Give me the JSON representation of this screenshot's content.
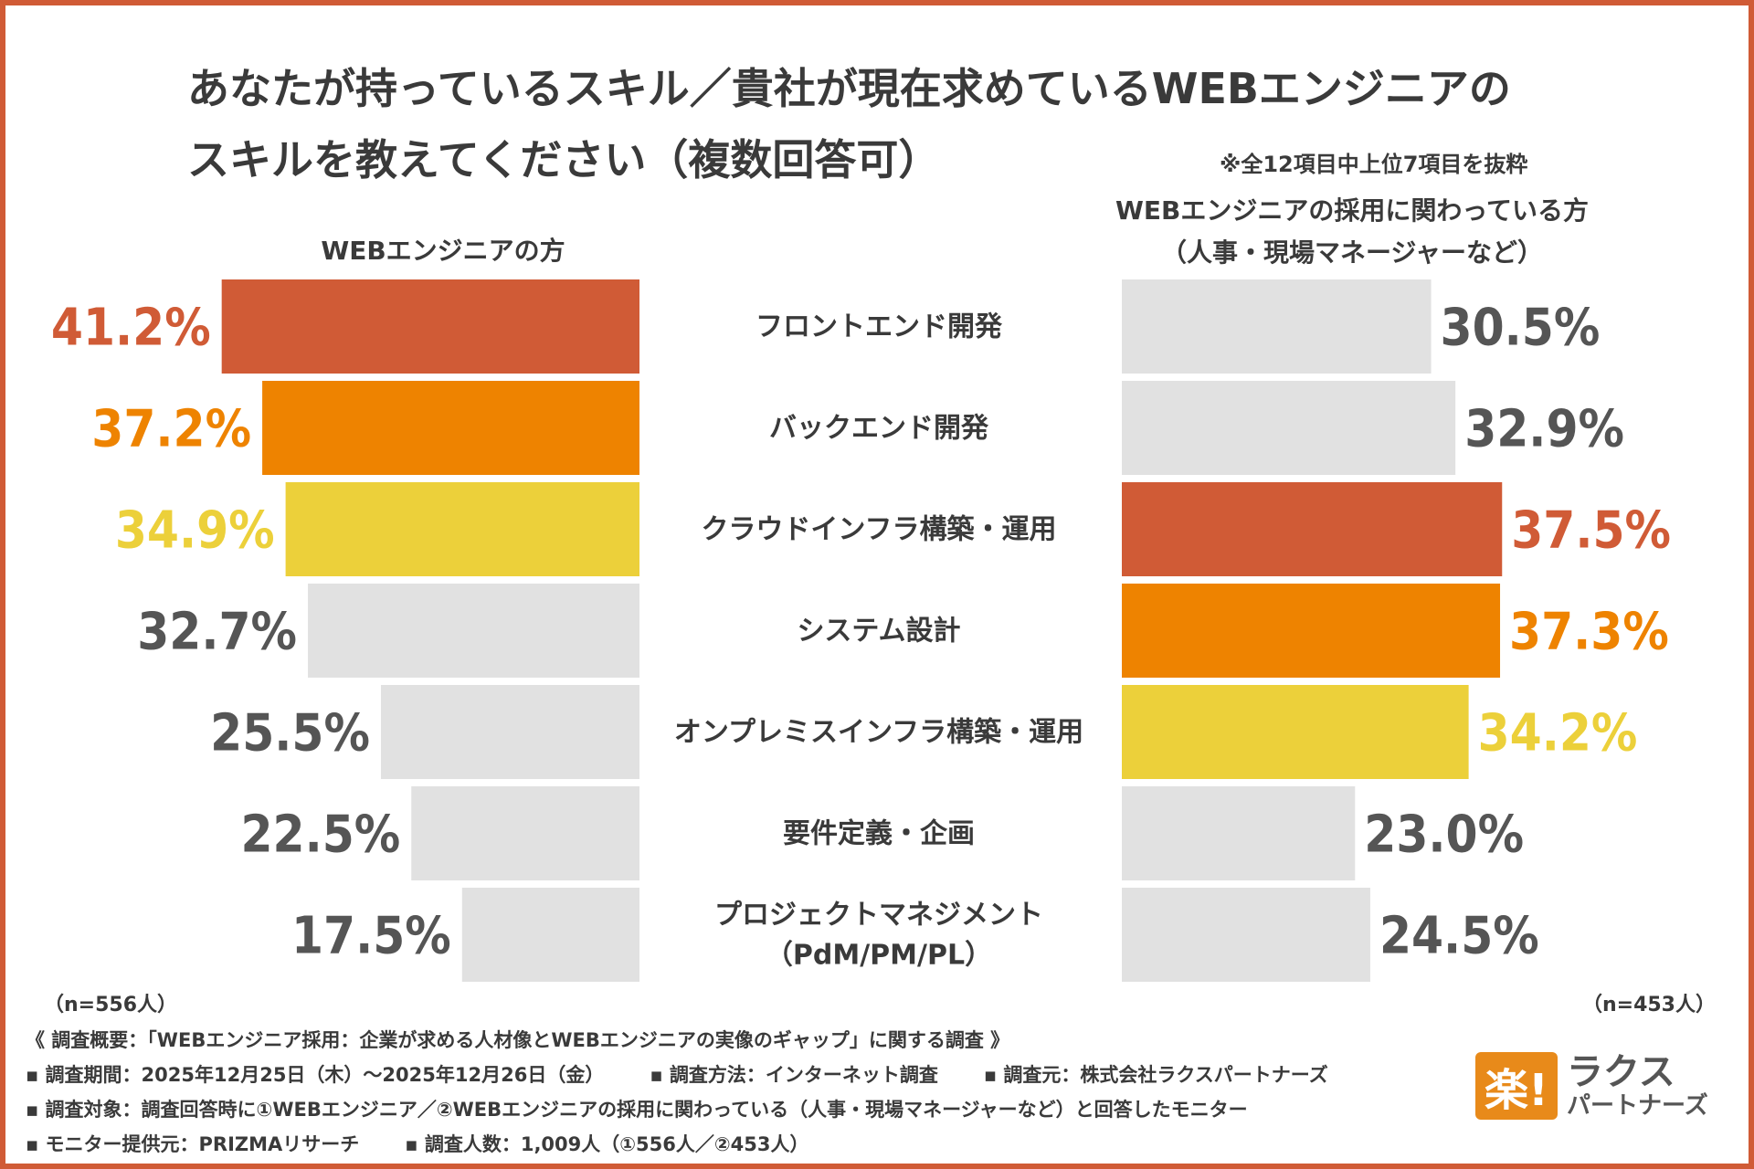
{
  "title": {
    "line1": "あなたが持っているスキル／貴社が現在求めているWEBエンジニアの",
    "line2": "スキルを教えてください（複数回答可）"
  },
  "note": "※全12項目中上位7項目を抜粋",
  "left_header": "WEBエンジニアの方",
  "right_header": {
    "line1": "WEBエンジニアの採用に関わっている方",
    "line2": "（人事・現場マネージャーなど）"
  },
  "colors": {
    "rank1": "#d05b36",
    "rank2": "#ee8300",
    "rank3": "#ecd03a",
    "other_bar": "#e1e1e1",
    "other_text": "#555555"
  },
  "chart_data": {
    "type": "bar",
    "orientation": "horizontal-butterfly",
    "categories": [
      [
        "フロントエンド開発"
      ],
      [
        "バックエンド開発"
      ],
      [
        "クラウドインフラ構築・運用"
      ],
      [
        "システム設計"
      ],
      [
        "オンプレミスインフラ構築・運用"
      ],
      [
        "要件定義・企画"
      ],
      [
        "プロジェクトマネジメント",
        "（PdM/PM/PL）"
      ]
    ],
    "series": [
      {
        "name": "WEBエンジニアの方",
        "values": [
          41.2,
          37.2,
          34.9,
          32.7,
          25.5,
          22.5,
          17.5
        ],
        "labels": [
          "41.2%",
          "37.2%",
          "34.9%",
          "32.7%",
          "25.5%",
          "22.5%",
          "17.5%"
        ],
        "highlight": [
          "rank1",
          "rank2",
          "rank3",
          null,
          null,
          null,
          null
        ]
      },
      {
        "name": "WEBエンジニアの採用に関わっている方",
        "values": [
          30.5,
          32.9,
          37.5,
          37.3,
          34.2,
          23.0,
          24.5
        ],
        "labels": [
          "30.5%",
          "32.9%",
          "37.5%",
          "37.3%",
          "34.2%",
          "23.0%",
          "24.5%"
        ],
        "highlight": [
          null,
          null,
          "rank1",
          "rank2",
          "rank3",
          null,
          null
        ]
      }
    ],
    "xlim": [
      0,
      45
    ]
  },
  "n_left": "（n=556人）",
  "n_right": "（n=453人）",
  "survey": {
    "overview": "《 調査概要：「WEBエンジニア採用：企業が求める人材像とWEBエンジニアの実像のギャップ」に関する調査 》",
    "period": "▪ 調査期間：2025年12月25日（木）～2025年12月26日（金）",
    "method": "▪ 調査方法：インターネット調査",
    "source": "▪ 調査元：株式会社ラクスパートナーズ",
    "target": "▪ 調査対象：調査回答時に①WEBエンジニア／②WEBエンジニアの採用に関わっている（人事・現場マネージャーなど）と回答したモニター",
    "provider": "▪ モニター提供元：PRIZMAリサーチ",
    "count": "▪ 調査人数：1,009人（①556人／②453人）"
  },
  "logo": {
    "mark": "楽!",
    "line1": "ラクス",
    "line2": "パートナーズ"
  }
}
